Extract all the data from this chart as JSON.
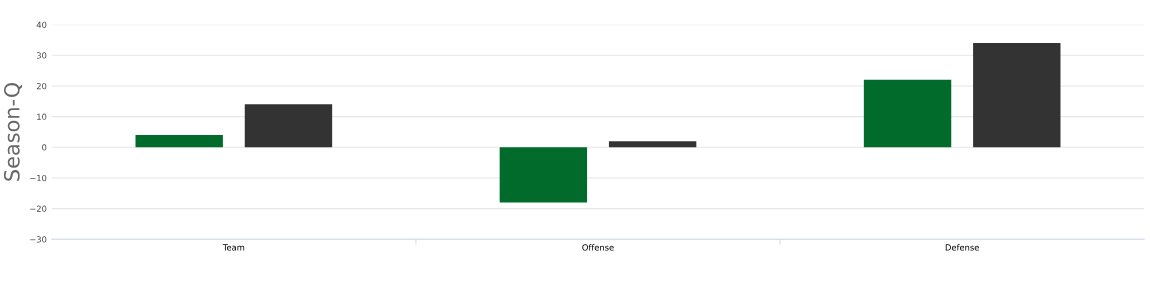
{
  "chart_data": {
    "type": "bar",
    "ylabel": "Season-Q",
    "categories": [
      "Team",
      "Offense",
      "Defense"
    ],
    "series": [
      {
        "color": "#006b2b",
        "values": [
          4,
          -18,
          22
        ]
      },
      {
        "color": "#333333",
        "values": [
          14,
          2,
          34
        ]
      }
    ],
    "ylim": [
      -30,
      40
    ],
    "yticks": [
      {
        "value": -30,
        "label": "−30"
      },
      {
        "value": -20,
        "label": "−20"
      },
      {
        "value": -10,
        "label": "−10"
      },
      0,
      10,
      20,
      30,
      40
    ],
    "grid": "y"
  }
}
